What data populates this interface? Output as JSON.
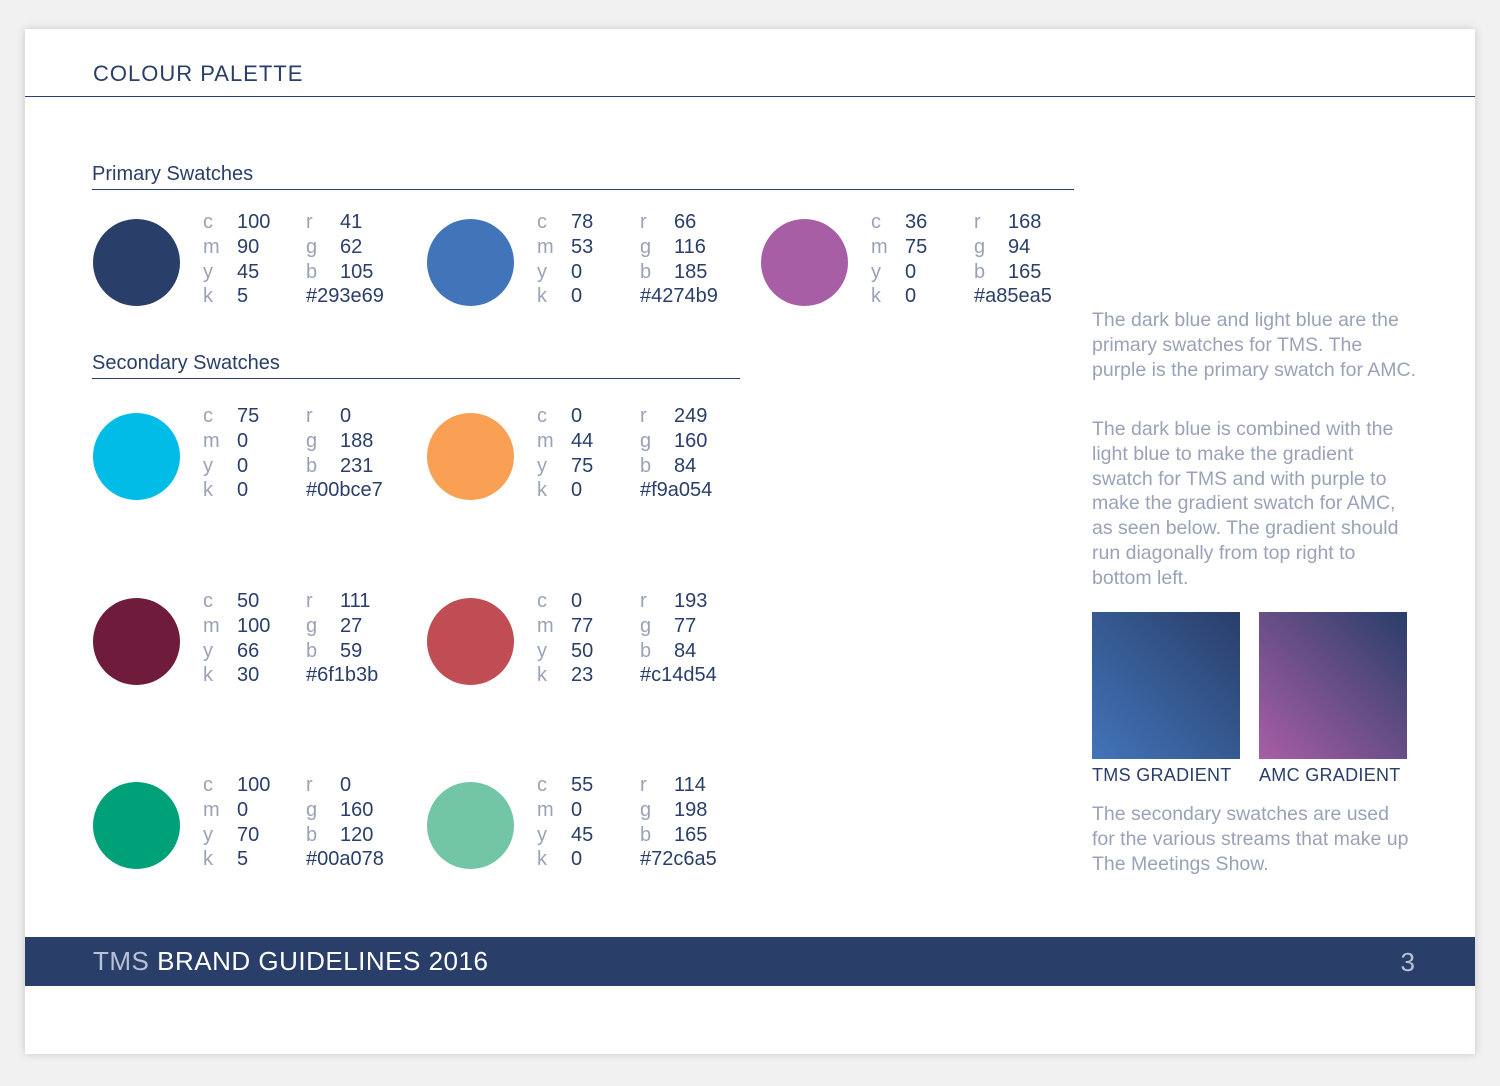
{
  "header": {
    "title": "COLOUR PALETTE"
  },
  "primary": {
    "title": "Primary Swatches",
    "swatches": [
      {
        "color": "#293e69",
        "c": "100",
        "m": "90",
        "y": "45",
        "k": "5",
        "r": "41",
        "g": "62",
        "b": "105",
        "hex": "#293e69"
      },
      {
        "color": "#4274b9",
        "c": "78",
        "m": "53",
        "y": "0",
        "k": "0",
        "r": "66",
        "g": "116",
        "b": "185",
        "hex": "#4274b9"
      },
      {
        "color": "#a85ea5",
        "c": "36",
        "m": "75",
        "y": "0",
        "k": "0",
        "r": "168",
        "g": "94",
        "b": "165",
        "hex": "#a85ea5"
      }
    ]
  },
  "secondary": {
    "title": "Secondary Swatches",
    "swatches": [
      {
        "color": "#00bce7",
        "c": "75",
        "m": "0",
        "y": "0",
        "k": "0",
        "r": "0",
        "g": "188",
        "b": "231",
        "hex": "#00bce7"
      },
      {
        "color": "#f9a054",
        "c": "0",
        "m": "44",
        "y": "75",
        "k": "0",
        "r": "249",
        "g": "160",
        "b": "84",
        "hex": "#f9a054"
      },
      {
        "color": "#6f1b3b",
        "c": "50",
        "m": "100",
        "y": "66",
        "k": "30",
        "r": "111",
        "g": "27",
        "b": "59",
        "hex": "#6f1b3b"
      },
      {
        "color": "#c14d54",
        "c": "0",
        "m": "77",
        "y": "50",
        "k": "23",
        "r": "193",
        "g": "77",
        "b": "84",
        "hex": "#c14d54"
      },
      {
        "color": "#00a078",
        "c": "100",
        "m": "0",
        "y": "70",
        "k": "5",
        "r": "0",
        "g": "160",
        "b": "120",
        "hex": "#00a078"
      },
      {
        "color": "#72c6a5",
        "c": "55",
        "m": "0",
        "y": "45",
        "k": "0",
        "r": "114",
        "g": "198",
        "b": "165",
        "hex": "#72c6a5"
      }
    ]
  },
  "labels": {
    "c": "c",
    "m": "m",
    "y": "y",
    "k": "k",
    "r": "r",
    "g": "g",
    "b": "b"
  },
  "side": {
    "para1": "The dark blue and light blue are the primary swatches for TMS. The purple is the primary swatch for AMC.",
    "para2": "The dark blue is combined with the light blue to make the gradient swatch for TMS and with purple to make the gradient swatch for AMC, as seen below. The gradient should run diagonally from top right to bottom left.",
    "para3": "The secondary swatches are used for the various streams that make up The Meetings Show."
  },
  "gradients": [
    {
      "label": "TMS GRADIENT",
      "from": "#4274b9",
      "to": "#293e69"
    },
    {
      "label": "AMC GRADIENT",
      "from": "#a85ea5",
      "to": "#293e69"
    }
  ],
  "footer": {
    "prefix": "TMS",
    "title": "BRAND GUIDELINES 2016",
    "page": "3"
  }
}
